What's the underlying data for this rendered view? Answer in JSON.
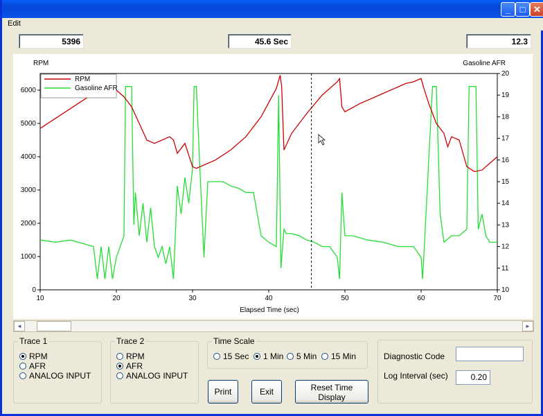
{
  "menu": {
    "edit": "Edit"
  },
  "readouts": {
    "rpm": "5396",
    "time": "45.6 Sec",
    "afr": "12.3"
  },
  "chart": {
    "left_axis_label": "RPM",
    "right_axis_label": "Gasoline AFR",
    "x_label": "Elapsed Time (sec)",
    "legend": [
      "RPM",
      "Gasoline AFR"
    ]
  },
  "chart_data": {
    "type": "line",
    "xlabel": "Elapsed Time (sec)",
    "ylabel": "RPM",
    "y2label": "Gasoline AFR",
    "xlim": [
      10,
      70
    ],
    "ylim": [
      0,
      6500
    ],
    "y2lim": [
      10,
      20
    ],
    "x_ticks": [
      "10",
      "20",
      "30",
      "40",
      "50",
      "60",
      "70"
    ],
    "y_ticks": [
      "0",
      "1000",
      "2000",
      "3000",
      "4000",
      "5000",
      "6000"
    ],
    "y2_ticks": [
      "10",
      "11",
      "12",
      "13",
      "14",
      "15",
      "16",
      "17",
      "18",
      "19",
      "20"
    ],
    "cursor_x": 45.6,
    "legend_position": "top-left",
    "colors": {
      "rpm": "#cc0000",
      "afr": "#22dd33"
    },
    "series": [
      {
        "name": "RPM",
        "axis": "left",
        "x": [
          10,
          12,
          14,
          16,
          18,
          19,
          20,
          21,
          22,
          23,
          24,
          25,
          26,
          27,
          27.5,
          28,
          29,
          30,
          30.5,
          31,
          33,
          35,
          37,
          39,
          41,
          41.5,
          41.7,
          42,
          43,
          45,
          47,
          49,
          49.3,
          49.6,
          50,
          52,
          54,
          56,
          58,
          59,
          60,
          60.3,
          61,
          62,
          63,
          63.5,
          64,
          65,
          66,
          67,
          68,
          69,
          70
        ],
        "y": [
          4850,
          5150,
          5450,
          5750,
          5950,
          6050,
          6000,
          5800,
          5500,
          5000,
          4500,
          4400,
          4500,
          4600,
          4500,
          4100,
          4400,
          3700,
          3650,
          3700,
          3900,
          4200,
          4600,
          5200,
          6050,
          6450,
          6100,
          4200,
          4700,
          5300,
          5850,
          6250,
          6350,
          5500,
          5350,
          5600,
          5800,
          6000,
          6200,
          6250,
          6350,
          6100,
          5600,
          5000,
          4700,
          4300,
          4600,
          4500,
          3700,
          3550,
          3600,
          3800,
          4000
        ]
      },
      {
        "name": "Gasoline AFR",
        "axis": "right",
        "x": [
          10,
          12,
          14,
          16,
          17,
          17.5,
          18,
          18.5,
          19,
          19.5,
          20,
          20.5,
          21,
          21.2,
          21.5,
          22,
          22.3,
          22.5,
          23,
          23.5,
          24,
          24.5,
          25,
          25.5,
          26,
          26.5,
          27,
          27.5,
          28,
          28.5,
          29,
          29.5,
          30,
          30.2,
          30.5,
          31,
          31.5,
          32,
          33,
          34,
          35,
          36,
          37,
          38,
          39,
          40,
          41,
          41.3,
          41.6,
          42,
          42.3,
          43,
          44,
          45,
          46,
          47,
          48,
          49,
          49.3,
          49.6,
          50,
          51,
          53,
          55,
          57,
          59,
          60,
          60.2,
          60.5,
          61,
          61.5,
          61.8,
          62,
          62.5,
          63,
          64,
          65,
          66,
          66.3,
          66.8,
          67.2,
          67.5,
          68,
          68.5,
          69,
          70
        ],
        "y": [
          12.3,
          12.2,
          12.3,
          12.1,
          12.0,
          10.5,
          12.0,
          10.5,
          12.0,
          10.5,
          11.5,
          12.0,
          12.5,
          19.4,
          19.4,
          19.4,
          13.0,
          14.5,
          12.5,
          14.0,
          12.2,
          13.8,
          12.0,
          11.5,
          12.0,
          11.2,
          12.0,
          10.5,
          14.8,
          13.5,
          15.2,
          14.0,
          15.6,
          19.4,
          19.4,
          15.3,
          11.5,
          15.0,
          15.0,
          15.0,
          14.8,
          14.7,
          14.5,
          14.5,
          12.5,
          12.2,
          12.0,
          19.0,
          11.0,
          12.8,
          12.6,
          12.6,
          12.5,
          12.3,
          12.2,
          12.0,
          12.0,
          11.5,
          10.5,
          14.5,
          12.5,
          12.5,
          12.3,
          12.2,
          12.0,
          12.0,
          11.5,
          10.5,
          12.5,
          16.0,
          19.4,
          19.4,
          19.4,
          13.5,
          12.2,
          12.5,
          12.5,
          12.8,
          19.4,
          19.4,
          19.4,
          12.8,
          13.5,
          12.5,
          12.2,
          12.2
        ]
      }
    ]
  },
  "scrollbar": {
    "left": "◄",
    "right": "►"
  },
  "trace1": {
    "title": "Trace 1",
    "options": [
      "RPM",
      "AFR",
      "ANALOG INPUT"
    ],
    "selected": "RPM"
  },
  "trace2": {
    "title": "Trace 2",
    "options": [
      "RPM",
      "AFR",
      "ANALOG INPUT"
    ],
    "selected": "AFR"
  },
  "timescale": {
    "title": "Time Scale",
    "options": [
      "15 Sec",
      "1 Min",
      "5 Min",
      "15 Min"
    ],
    "selected": "1 Min"
  },
  "buttons": {
    "print": "Print",
    "exit": "Exit",
    "reset": "Reset Time Display"
  },
  "diagnostic": {
    "label": "Diagnostic Code",
    "value": "",
    "log_label": "Log Interval (sec)",
    "log_value": "0.20"
  },
  "titlebar": {
    "minimize": "_",
    "maximize": "□",
    "close": "✕"
  }
}
